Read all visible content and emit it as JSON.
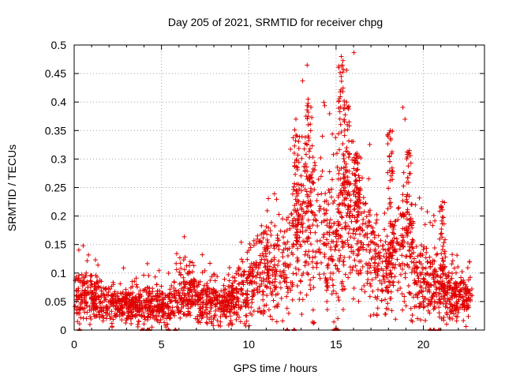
{
  "chart_data": {
    "type": "scatter",
    "title": "Day 205 of 2021, SRMTID for receiver chpg",
    "xlabel": "GPS time / hours",
    "ylabel": "SRMTID / TECUs",
    "xlim": [
      0,
      23.5
    ],
    "ylim": [
      0,
      0.5
    ],
    "grid": true,
    "marker": "+",
    "series_color": "#e00000",
    "x_ticks": [
      0,
      5,
      10,
      15,
      20
    ],
    "x_tick_labels": [
      "0",
      "5",
      "10",
      "15",
      "20"
    ],
    "y_ticks": [
      0,
      0.05,
      0.1,
      0.15,
      0.2,
      0.25,
      0.3,
      0.35,
      0.4,
      0.45,
      0.5
    ],
    "y_tick_labels": [
      "0",
      "0.05",
      "0.1",
      "0.15",
      "0.2",
      "0.25",
      "0.3",
      "0.35",
      "0.4",
      "0.45",
      "0.5"
    ],
    "envelope": {
      "description": "approximate typical SRMTID level by hour (points scatter around these)",
      "x": [
        0,
        0.5,
        1,
        1.5,
        2,
        2.5,
        3,
        3.5,
        4,
        4.5,
        5,
        5.5,
        6,
        6.5,
        7,
        7.5,
        8,
        8.5,
        9,
        9.5,
        10,
        10.5,
        11,
        11.5,
        12,
        12.5,
        13,
        13.5,
        14,
        14.5,
        15,
        15.5,
        16,
        16.5,
        17,
        17.5,
        18,
        18.5,
        19,
        19.5,
        20,
        20.5,
        21,
        21.5,
        22,
        22.5,
        23
      ],
      "y": [
        0.055,
        0.06,
        0.055,
        0.05,
        0.045,
        0.04,
        0.045,
        0.04,
        0.045,
        0.05,
        0.04,
        0.04,
        0.06,
        0.065,
        0.055,
        0.05,
        0.05,
        0.045,
        0.055,
        0.07,
        0.08,
        0.1,
        0.11,
        0.1,
        0.12,
        0.14,
        0.17,
        0.2,
        0.16,
        0.15,
        0.14,
        0.22,
        0.2,
        0.17,
        0.12,
        0.1,
        0.1,
        0.15,
        0.16,
        0.1,
        0.09,
        0.08,
        0.07,
        0.06,
        0.055,
        0.05,
        0.05
      ]
    },
    "peaks": [
      {
        "x": 12.7,
        "y": 0.37
      },
      {
        "x": 13.4,
        "y": 0.405
      },
      {
        "x": 15.3,
        "y": 0.48
      },
      {
        "x": 15.6,
        "y": 0.4
      },
      {
        "x": 16.2,
        "y": 0.31
      },
      {
        "x": 18.1,
        "y": 0.35
      },
      {
        "x": 19.2,
        "y": 0.315
      },
      {
        "x": 21.1,
        "y": 0.225
      }
    ],
    "zero_points_x": [
      0.3,
      3.9,
      4.2,
      4.3,
      5.4,
      5.8,
      12.2,
      12.6,
      14.9,
      15.0,
      15.1,
      20.4,
      20.6,
      20.9
    ]
  }
}
